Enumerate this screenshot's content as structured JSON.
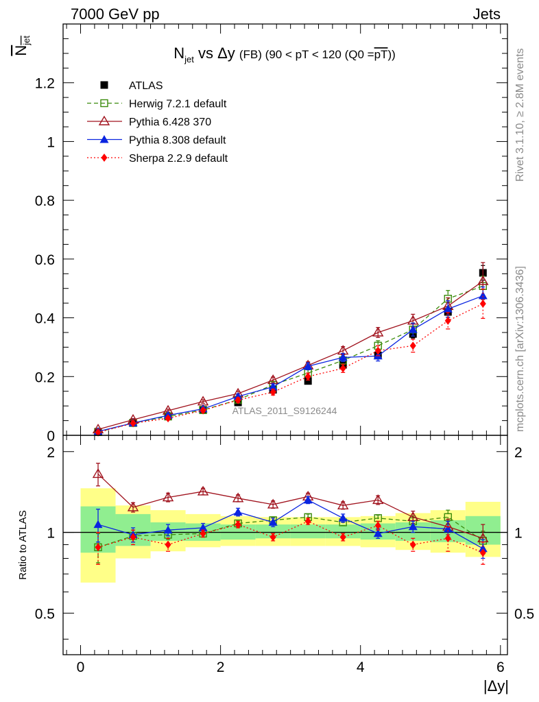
{
  "header": {
    "left_label": "7000 GeV pp",
    "right_label": "Jets"
  },
  "side_labels": {
    "rivet": "Rivet 3.1.10, ≥ 2.8M events",
    "mcplots": "mcplots.cern.ch [arXiv:1306.3436]"
  },
  "watermark": "ATLAS_2011_S9126244",
  "chart_data": [
    {
      "type": "scatter",
      "title": {
        "n": "N",
        "n_sub": "jet",
        "vs": " vs Δy ",
        "fb": "(FB)",
        "rest_1": " (90 < pT < 120 (Q0 =",
        "overline": "pT",
        "rest_2": "))"
      },
      "ylabel": {
        "n": "N",
        "sub": "jet"
      },
      "xlabel": "|Δy|",
      "xlim": [
        -0.25,
        6.1
      ],
      "ylim": [
        0,
        1.4
      ],
      "x_ticks": [
        "0",
        "2",
        "4",
        "6"
      ],
      "y_ticks": [
        "0",
        "0.2",
        "0.4",
        "0.6",
        "0.8",
        "1",
        "1.2"
      ],
      "x": [
        0.25,
        0.75,
        1.25,
        1.75,
        2.25,
        2.75,
        3.25,
        3.75,
        4.25,
        4.75,
        5.25,
        5.75
      ],
      "legend_placement": "top-left",
      "series": [
        {
          "name": "ATLAS",
          "color": "#000000",
          "marker": "filled-square",
          "line": "none",
          "values": [
            0.012,
            0.043,
            0.065,
            0.087,
            0.112,
            0.155,
            0.185,
            0.24,
            0.272,
            0.345,
            0.42,
            0.553
          ],
          "errors": [
            0.003,
            0.004,
            0.005,
            0.006,
            0.007,
            0.008,
            0.009,
            0.01,
            0.012,
            0.014,
            0.018,
            0.025
          ]
        },
        {
          "name": "Herwig 7.2.1 default",
          "color": "#3a8a0b",
          "marker": "open-square",
          "line": "dashed",
          "values": [
            0.011,
            0.042,
            0.064,
            0.086,
            0.121,
            0.172,
            0.212,
            0.255,
            0.305,
            0.36,
            0.465,
            0.508
          ],
          "errors": [
            0.002,
            0.004,
            0.005,
            0.006,
            0.008,
            0.01,
            0.012,
            0.014,
            0.017,
            0.022,
            0.028,
            0.034
          ]
        },
        {
          "name": "Pythia 6.428 370",
          "color": "#a0121d",
          "marker": "open-triangle",
          "line": "solid",
          "values": [
            0.02,
            0.053,
            0.084,
            0.115,
            0.142,
            0.188,
            0.238,
            0.288,
            0.35,
            0.39,
            0.44,
            0.525
          ],
          "errors": [
            0.002,
            0.004,
            0.005,
            0.006,
            0.008,
            0.01,
            0.012,
            0.014,
            0.017,
            0.022,
            0.028,
            0.063
          ]
        },
        {
          "name": "Pythia 8.308 default",
          "color": "#0a24e0",
          "marker": "filled-triangle",
          "line": "solid",
          "values": [
            0.013,
            0.042,
            0.068,
            0.09,
            0.132,
            0.165,
            0.235,
            0.265,
            0.27,
            0.36,
            0.43,
            0.475
          ],
          "errors": [
            0.002,
            0.004,
            0.005,
            0.006,
            0.008,
            0.01,
            0.012,
            0.014,
            0.017,
            0.022,
            0.028,
            0.03
          ]
        },
        {
          "name": "Sherpa 2.2.9 default",
          "color": "#ff0000",
          "marker": "filled-diamond",
          "line": "dotted",
          "values": [
            0.01,
            0.041,
            0.058,
            0.085,
            0.12,
            0.147,
            0.2,
            0.228,
            0.288,
            0.305,
            0.39,
            0.448
          ],
          "errors": [
            0.002,
            0.004,
            0.005,
            0.006,
            0.008,
            0.01,
            0.012,
            0.014,
            0.017,
            0.022,
            0.028,
            0.05
          ]
        }
      ]
    },
    {
      "type": "scatter",
      "ylabel": "Ratio to ATLAS",
      "xlim": [
        -0.25,
        6.1
      ],
      "ylim": [
        0.35,
        2.3
      ],
      "y_scale": "log",
      "y_ticks": [
        "0.5",
        "1",
        "2"
      ],
      "x": [
        0.25,
        0.75,
        1.25,
        1.75,
        2.25,
        2.75,
        3.25,
        3.75,
        4.25,
        4.75,
        5.25,
        5.75
      ],
      "band_inner": [
        [
          0.84,
          1.25
        ],
        [
          0.89,
          1.17
        ],
        [
          0.93,
          1.09
        ],
        [
          0.93,
          1.08
        ],
        [
          0.94,
          1.07
        ],
        [
          0.95,
          1.07
        ],
        [
          0.95,
          1.07
        ],
        [
          0.95,
          1.07
        ],
        [
          0.94,
          1.08
        ],
        [
          0.93,
          1.09
        ],
        [
          0.92,
          1.11
        ],
        [
          0.9,
          1.15
        ]
      ],
      "band_outer": [
        [
          0.65,
          1.46
        ],
        [
          0.8,
          1.26
        ],
        [
          0.85,
          1.21
        ],
        [
          0.88,
          1.17
        ],
        [
          0.89,
          1.15
        ],
        [
          0.89,
          1.14
        ],
        [
          0.89,
          1.14
        ],
        [
          0.89,
          1.14
        ],
        [
          0.88,
          1.15
        ],
        [
          0.86,
          1.18
        ],
        [
          0.84,
          1.21
        ],
        [
          0.81,
          1.3
        ]
      ],
      "band_colors": {
        "inner": "#90ee90",
        "outer": "#ffff88"
      },
      "series": [
        {
          "name": "Herwig 7.2.1 default",
          "values": [
            0.88,
            0.97,
            0.98,
            0.99,
            1.08,
            1.11,
            1.14,
            1.09,
            1.13,
            1.1,
            1.14,
            0.93
          ],
          "errors": [
            0.11,
            0.05,
            0.04,
            0.03,
            0.03,
            0.03,
            0.03,
            0.03,
            0.03,
            0.05,
            0.07,
            0.08
          ]
        },
        {
          "name": "Pythia 6.428 370",
          "values": [
            1.65,
            1.24,
            1.35,
            1.42,
            1.34,
            1.27,
            1.36,
            1.26,
            1.32,
            1.14,
            1.05,
            0.95
          ],
          "errors": [
            0.16,
            0.05,
            0.05,
            0.04,
            0.04,
            0.04,
            0.04,
            0.04,
            0.05,
            0.06,
            0.07,
            0.12
          ]
        },
        {
          "name": "Pythia 8.308 default",
          "values": [
            1.07,
            0.98,
            1.02,
            1.04,
            1.19,
            1.09,
            1.32,
            1.13,
            0.99,
            1.05,
            1.03,
            0.87
          ],
          "errors": [
            0.15,
            0.06,
            0.05,
            0.04,
            0.04,
            0.04,
            0.04,
            0.04,
            0.04,
            0.05,
            0.07,
            0.07
          ]
        },
        {
          "name": "Sherpa 2.2.9 default",
          "values": [
            0.88,
            0.96,
            0.9,
            0.99,
            1.07,
            0.96,
            1.1,
            0.96,
            1.06,
            0.9,
            0.95,
            0.84
          ],
          "errors": [
            0.12,
            0.06,
            0.05,
            0.03,
            0.03,
            0.03,
            0.03,
            0.03,
            0.04,
            0.05,
            0.1,
            0.08
          ]
        }
      ]
    }
  ]
}
